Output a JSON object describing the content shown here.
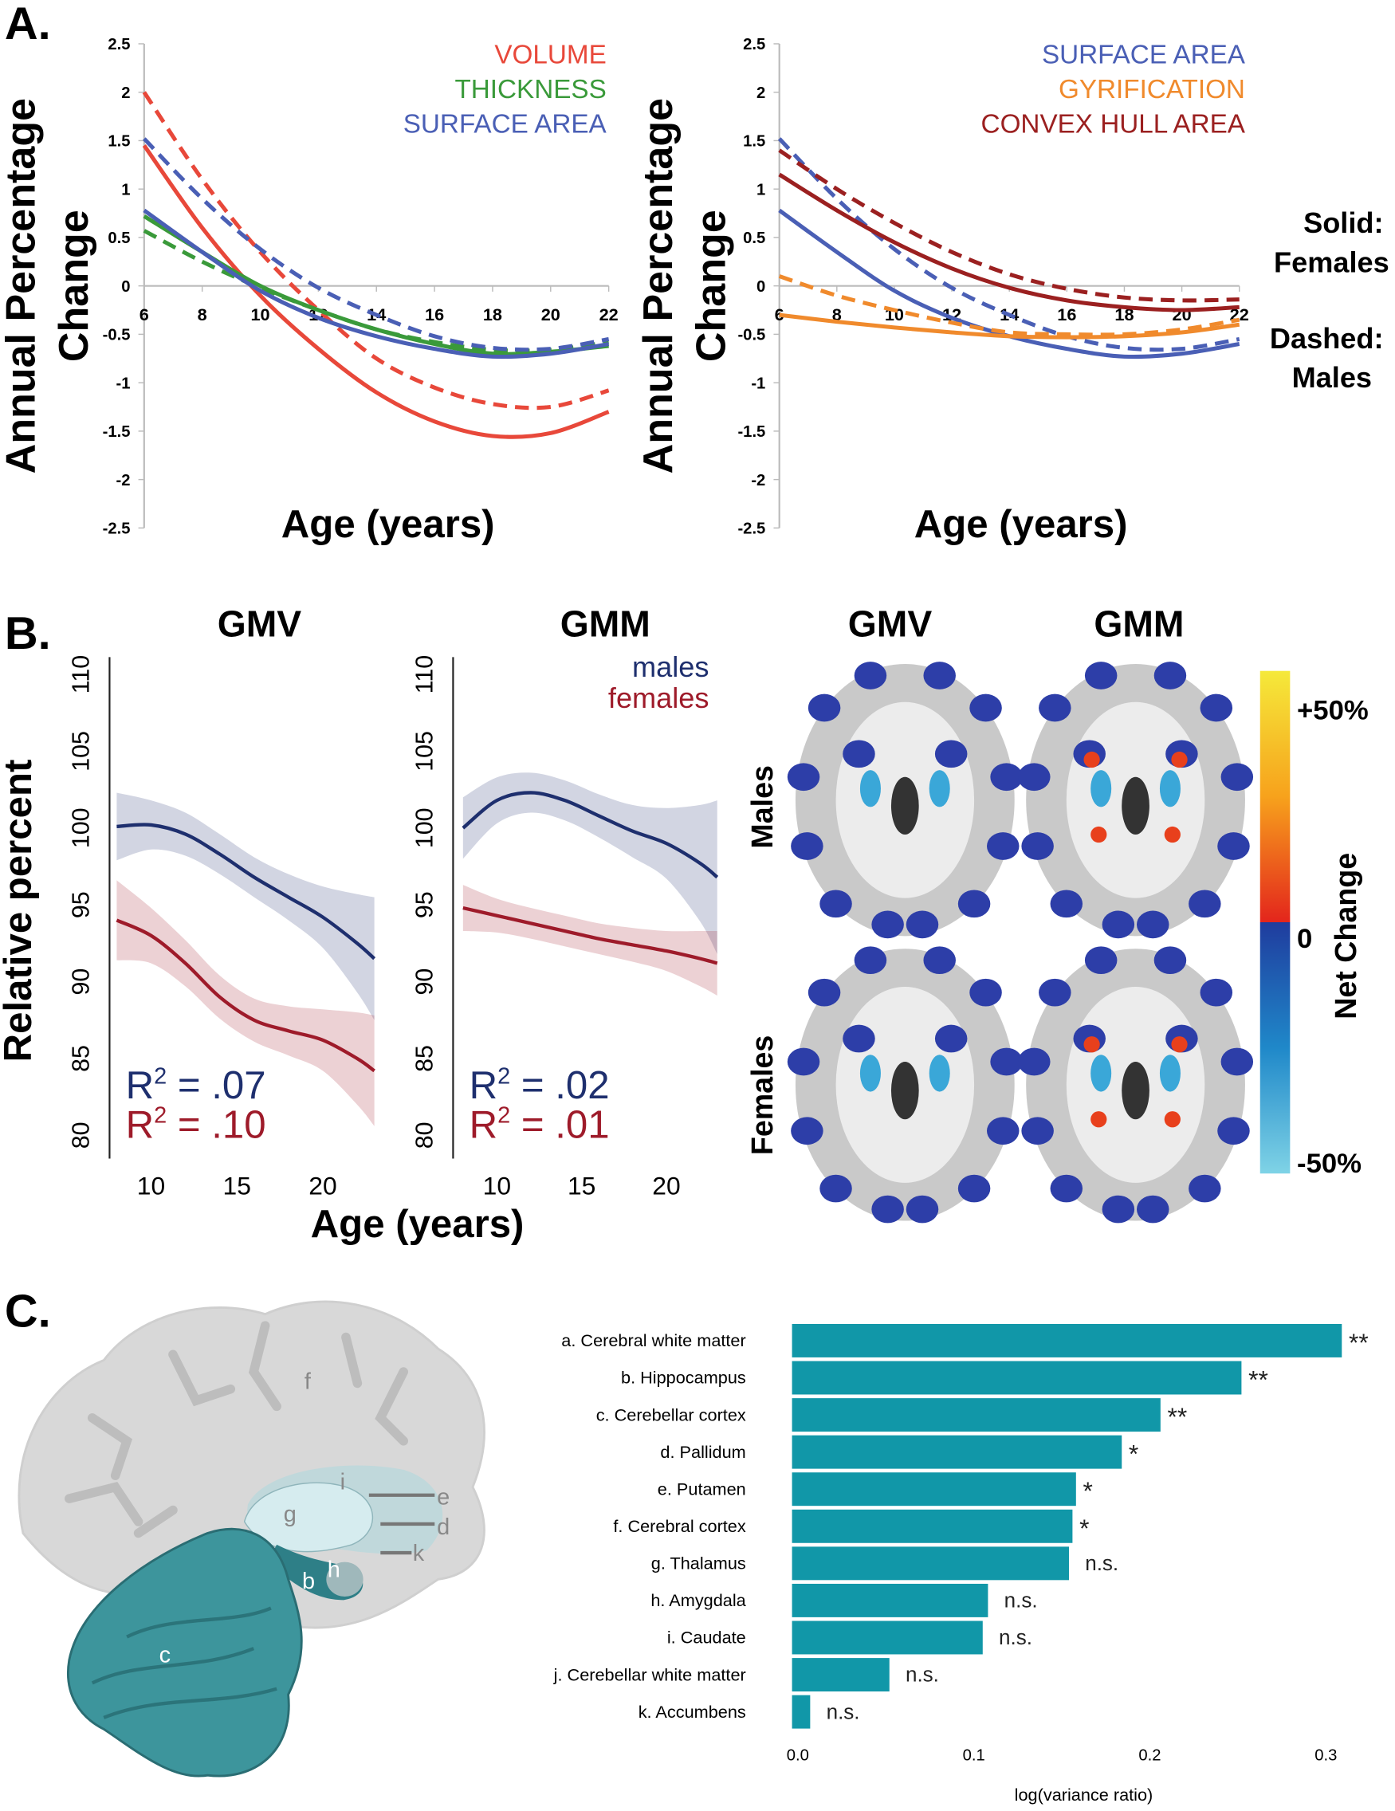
{
  "panel_labels": {
    "a": "A.",
    "b": "B.",
    "c": "C."
  },
  "line_style_key": {
    "solid": "Solid:",
    "solid_group": "Females",
    "dashed": "Dashed:",
    "dashed_group": "Males"
  },
  "colors": {
    "volume": "#e8483a",
    "thickness": "#3a9a3a",
    "surface_area": "#4a5fb5",
    "gyrification": "#f08a2c",
    "convex_hull": "#9b2020",
    "males_b": "#1e2f6e",
    "females_b": "#9e1b2a",
    "bar": "#1197a8"
  },
  "chart_data": [
    {
      "id": "A-left",
      "type": "line",
      "xlabel": "Age (years)",
      "ylabel_lines": [
        "Annual Percentage",
        "Change"
      ],
      "xlim": [
        6,
        22
      ],
      "ylim": [
        -2.5,
        2.5
      ],
      "xticks": [
        "6",
        "8",
        "10",
        "12",
        "14",
        "16",
        "18",
        "20",
        "22"
      ],
      "yticks": [
        "2.5",
        "2",
        "1.5",
        "1",
        "0.5",
        "0",
        "-0.5",
        "-1",
        "-1.5",
        "-2",
        "-2.5"
      ],
      "legend": [
        "VOLUME",
        "THICKNESS",
        "SURFACE AREA"
      ],
      "legend_colors": [
        "#e8483a",
        "#3a9a3a",
        "#4a5fb5"
      ],
      "legend_placement": "top-right",
      "x": [
        6,
        8,
        10,
        12,
        14,
        16,
        18,
        20,
        22
      ],
      "series": [
        {
          "name": "VOLUME",
          "group": "Females",
          "style": "solid",
          "color": "#e8483a",
          "values": [
            1.45,
            0.6,
            -0.1,
            -0.65,
            -1.1,
            -1.4,
            -1.55,
            -1.52,
            -1.3
          ]
        },
        {
          "name": "VOLUME",
          "group": "Males",
          "style": "dashed",
          "color": "#e8483a",
          "values": [
            2.0,
            1.1,
            0.35,
            -0.25,
            -0.75,
            -1.05,
            -1.22,
            -1.25,
            -1.08
          ]
        },
        {
          "name": "THICKNESS",
          "group": "Females",
          "style": "solid",
          "color": "#3a9a3a",
          "values": [
            0.72,
            0.35,
            0.0,
            -0.25,
            -0.45,
            -0.6,
            -0.7,
            -0.68,
            -0.62
          ]
        },
        {
          "name": "THICKNESS",
          "group": "Males",
          "style": "dashed",
          "color": "#3a9a3a",
          "values": [
            0.57,
            0.25,
            -0.02,
            -0.25,
            -0.45,
            -0.58,
            -0.66,
            -0.66,
            -0.58
          ]
        },
        {
          "name": "SURFACE AREA",
          "group": "Females",
          "style": "solid",
          "color": "#4a5fb5",
          "values": [
            0.78,
            0.35,
            -0.05,
            -0.33,
            -0.52,
            -0.65,
            -0.73,
            -0.7,
            -0.6
          ]
        },
        {
          "name": "SURFACE AREA",
          "group": "Males",
          "style": "dashed",
          "color": "#4a5fb5",
          "values": [
            1.52,
            0.9,
            0.38,
            -0.02,
            -0.3,
            -0.52,
            -0.64,
            -0.65,
            -0.55
          ]
        }
      ]
    },
    {
      "id": "A-right",
      "type": "line",
      "xlabel": "Age (years)",
      "ylabel_lines": [
        "Annual Percentage",
        "Change"
      ],
      "xlim": [
        6,
        22
      ],
      "ylim": [
        -2.5,
        2.5
      ],
      "xticks": [
        "6",
        "8",
        "10",
        "12",
        "14",
        "16",
        "18",
        "20",
        "22"
      ],
      "yticks": [
        "2.5",
        "2",
        "1.5",
        "1",
        "0.5",
        "0",
        "-0.5",
        "-1",
        "-1.5",
        "-2",
        "-2.5"
      ],
      "legend": [
        "SURFACE AREA",
        "GYRIFICATION",
        "CONVEX HULL AREA"
      ],
      "legend_colors": [
        "#4a5fb5",
        "#f08a2c",
        "#9b2020"
      ],
      "legend_placement": "top-right",
      "x": [
        6,
        8,
        10,
        12,
        14,
        16,
        18,
        20,
        22
      ],
      "series": [
        {
          "name": "SURFACE AREA",
          "group": "Females",
          "style": "solid",
          "color": "#4a5fb5",
          "values": [
            0.78,
            0.35,
            -0.05,
            -0.33,
            -0.52,
            -0.65,
            -0.73,
            -0.7,
            -0.6
          ]
        },
        {
          "name": "SURFACE AREA",
          "group": "Males",
          "style": "dashed",
          "color": "#4a5fb5",
          "values": [
            1.52,
            0.9,
            0.38,
            -0.02,
            -0.3,
            -0.52,
            -0.64,
            -0.65,
            -0.55
          ]
        },
        {
          "name": "GYRIFICATION",
          "group": "Females",
          "style": "solid",
          "color": "#f08a2c",
          "values": [
            -0.3,
            -0.37,
            -0.43,
            -0.48,
            -0.52,
            -0.53,
            -0.52,
            -0.48,
            -0.4
          ]
        },
        {
          "name": "GYRIFICATION",
          "group": "Males",
          "style": "dashed",
          "color": "#f08a2c",
          "values": [
            0.1,
            -0.1,
            -0.25,
            -0.38,
            -0.48,
            -0.5,
            -0.5,
            -0.45,
            -0.35
          ]
        },
        {
          "name": "CONVEX HULL AREA",
          "group": "Females",
          "style": "solid",
          "color": "#9b2020",
          "values": [
            1.15,
            0.78,
            0.45,
            0.18,
            -0.02,
            -0.15,
            -0.22,
            -0.25,
            -0.22
          ]
        },
        {
          "name": "CONVEX HULL AREA",
          "group": "Males",
          "style": "dashed",
          "color": "#9b2020",
          "values": [
            1.4,
            1.0,
            0.65,
            0.35,
            0.12,
            -0.03,
            -0.12,
            -0.15,
            -0.14
          ]
        }
      ]
    },
    {
      "id": "B-GMV",
      "type": "line",
      "title": "GMV",
      "xlabel": "Age (years)",
      "ylabel": "Relative percent",
      "xlim": [
        8,
        23
      ],
      "ylim": [
        80,
        110
      ],
      "xticks": [
        "10",
        "15",
        "20"
      ],
      "yticks": [
        "80",
        "85",
        "90",
        "95",
        "100",
        "105",
        "110"
      ],
      "x": [
        8,
        10,
        12,
        14,
        16,
        18,
        20,
        22,
        23
      ],
      "series": [
        {
          "name": "males",
          "color": "#1e2f6e",
          "values": [
            100.1,
            100.2,
            99.6,
            98.3,
            96.8,
            95.5,
            94.2,
            92.5,
            91.5
          ],
          "ci_halfwidth": [
            2.2,
            1.6,
            1.4,
            1.3,
            1.3,
            1.5,
            2.0,
            3.2,
            4.0
          ]
        },
        {
          "name": "females",
          "color": "#9e1b2a",
          "values": [
            94.0,
            93.0,
            91.2,
            89.0,
            87.5,
            86.8,
            86.2,
            85.0,
            84.2
          ],
          "ci_halfwidth": [
            2.6,
            1.8,
            1.5,
            1.4,
            1.4,
            1.6,
            2.0,
            3.0,
            3.6
          ]
        }
      ],
      "annotations": [
        {
          "prefix": "R",
          "sup": "2",
          "text": " = .07",
          "color": "#1e2f6e"
        },
        {
          "prefix": "R",
          "sup": "2",
          "text": " = .10",
          "color": "#9e1b2a"
        }
      ]
    },
    {
      "id": "B-GMM",
      "type": "line",
      "title": "GMM",
      "xlim": [
        8,
        23
      ],
      "ylim": [
        80,
        110
      ],
      "xticks": [
        "10",
        "15",
        "20"
      ],
      "yticks": [
        "80",
        "85",
        "90",
        "95",
        "100",
        "105",
        "110"
      ],
      "legend": [
        "males",
        "females"
      ],
      "legend_placement": "top-right",
      "x": [
        8,
        10,
        12,
        14,
        16,
        18,
        20,
        22,
        23
      ],
      "series": [
        {
          "name": "males",
          "color": "#1e2f6e",
          "values": [
            100.0,
            101.8,
            102.3,
            101.8,
            100.8,
            99.8,
            99.0,
            97.7,
            96.8
          ],
          "ci_halfwidth": [
            2.0,
            1.5,
            1.3,
            1.3,
            1.4,
            1.7,
            2.3,
            3.8,
            5.0
          ]
        },
        {
          "name": "females",
          "color": "#9e1b2a",
          "values": [
            94.8,
            94.3,
            93.8,
            93.3,
            92.8,
            92.4,
            92.0,
            91.5,
            91.2
          ],
          "ci_halfwidth": [
            1.5,
            1.1,
            1.0,
            1.0,
            1.0,
            1.1,
            1.3,
            1.8,
            2.1
          ]
        }
      ],
      "annotations": [
        {
          "prefix": "R",
          "sup": "2",
          "text": " = .02",
          "color": "#1e2f6e"
        },
        {
          "prefix": "R",
          "sup": "2",
          "text": " = .01",
          "color": "#9e1b2a"
        }
      ]
    },
    {
      "id": "C-bars",
      "type": "bar",
      "orientation": "horizontal",
      "xlabel": "log(variance ratio)",
      "xlim": [
        0,
        0.32
      ],
      "xticks": [
        "0.0",
        "0.1",
        "0.2",
        "0.3"
      ],
      "categories": [
        "a. Cerebral white matter",
        "b. Hippocampus",
        "c. Cerebellar cortex",
        "d. Pallidum",
        "e. Putamen",
        "f. Cerebral cortex",
        "g. Thalamus",
        "h. Amygdala",
        "i. Caudate",
        "j. Cerebellar white matter",
        "k. Accumbens"
      ],
      "values": [
        0.311,
        0.254,
        0.208,
        0.186,
        0.16,
        0.158,
        0.156,
        0.11,
        0.107,
        0.054,
        0.009
      ],
      "significance": [
        "**",
        "**",
        "**",
        "*",
        "*",
        "*",
        "n.s.",
        "n.s.",
        "n.s.",
        "n.s.",
        "n.s."
      ]
    }
  ],
  "brain_maps": {
    "columns": [
      "GMV",
      "GMM"
    ],
    "rows": [
      "Males",
      "Females"
    ],
    "colorbar": {
      "top": "+50%",
      "middle": "0",
      "bottom": "-50%",
      "label": "Net Change"
    }
  },
  "brain_illustration_labels": [
    "f",
    "i",
    "g",
    "e",
    "d",
    "k",
    "b",
    "h",
    "c"
  ]
}
